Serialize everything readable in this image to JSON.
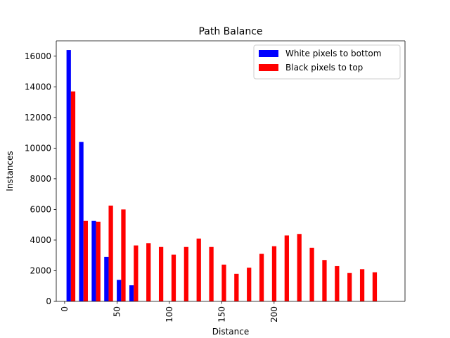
{
  "chart_data": {
    "type": "bar",
    "title": "Path Balance",
    "xlabel": "Distance",
    "ylabel": "Instances",
    "ylim": [
      0,
      17000
    ],
    "yticks": [
      0,
      2000,
      4000,
      6000,
      8000,
      10000,
      12000,
      14000,
      16000
    ],
    "xticks": [
      {
        "value": 0,
        "label": "0"
      },
      {
        "value": 50,
        "label": "50"
      },
      {
        "value": 100,
        "label": "100"
      },
      {
        "value": 150,
        "label": "150"
      },
      {
        "value": 200,
        "label": "200"
      }
    ],
    "xlim": [
      -8,
      325
    ],
    "x": [
      6,
      18,
      30,
      42,
      54,
      66,
      78,
      90,
      102,
      114,
      126,
      138,
      150,
      162,
      174,
      186,
      198,
      210,
      222,
      234,
      246,
      258,
      270,
      282,
      294,
      306
    ],
    "series": [
      {
        "name": "White pixels to bottom",
        "color": "#0000ff",
        "values": [
          16400,
          10400,
          5250,
          2900,
          1400,
          1050,
          0,
          0,
          0,
          0,
          0,
          0,
          0,
          0,
          0,
          0,
          0,
          0,
          0,
          0,
          0,
          0,
          0,
          0,
          0,
          0
        ]
      },
      {
        "name": "Black pixels to top",
        "color": "#ff0000",
        "values": [
          13700,
          5250,
          5200,
          6250,
          6000,
          3650,
          3800,
          3550,
          3050,
          3550,
          4100,
          3550,
          2400,
          1800,
          2200,
          3100,
          3600,
          4300,
          4400,
          3500,
          2700,
          2300,
          1850,
          2100,
          1900,
          0
        ]
      }
    ],
    "legend_position": "top-right",
    "grid": false
  }
}
